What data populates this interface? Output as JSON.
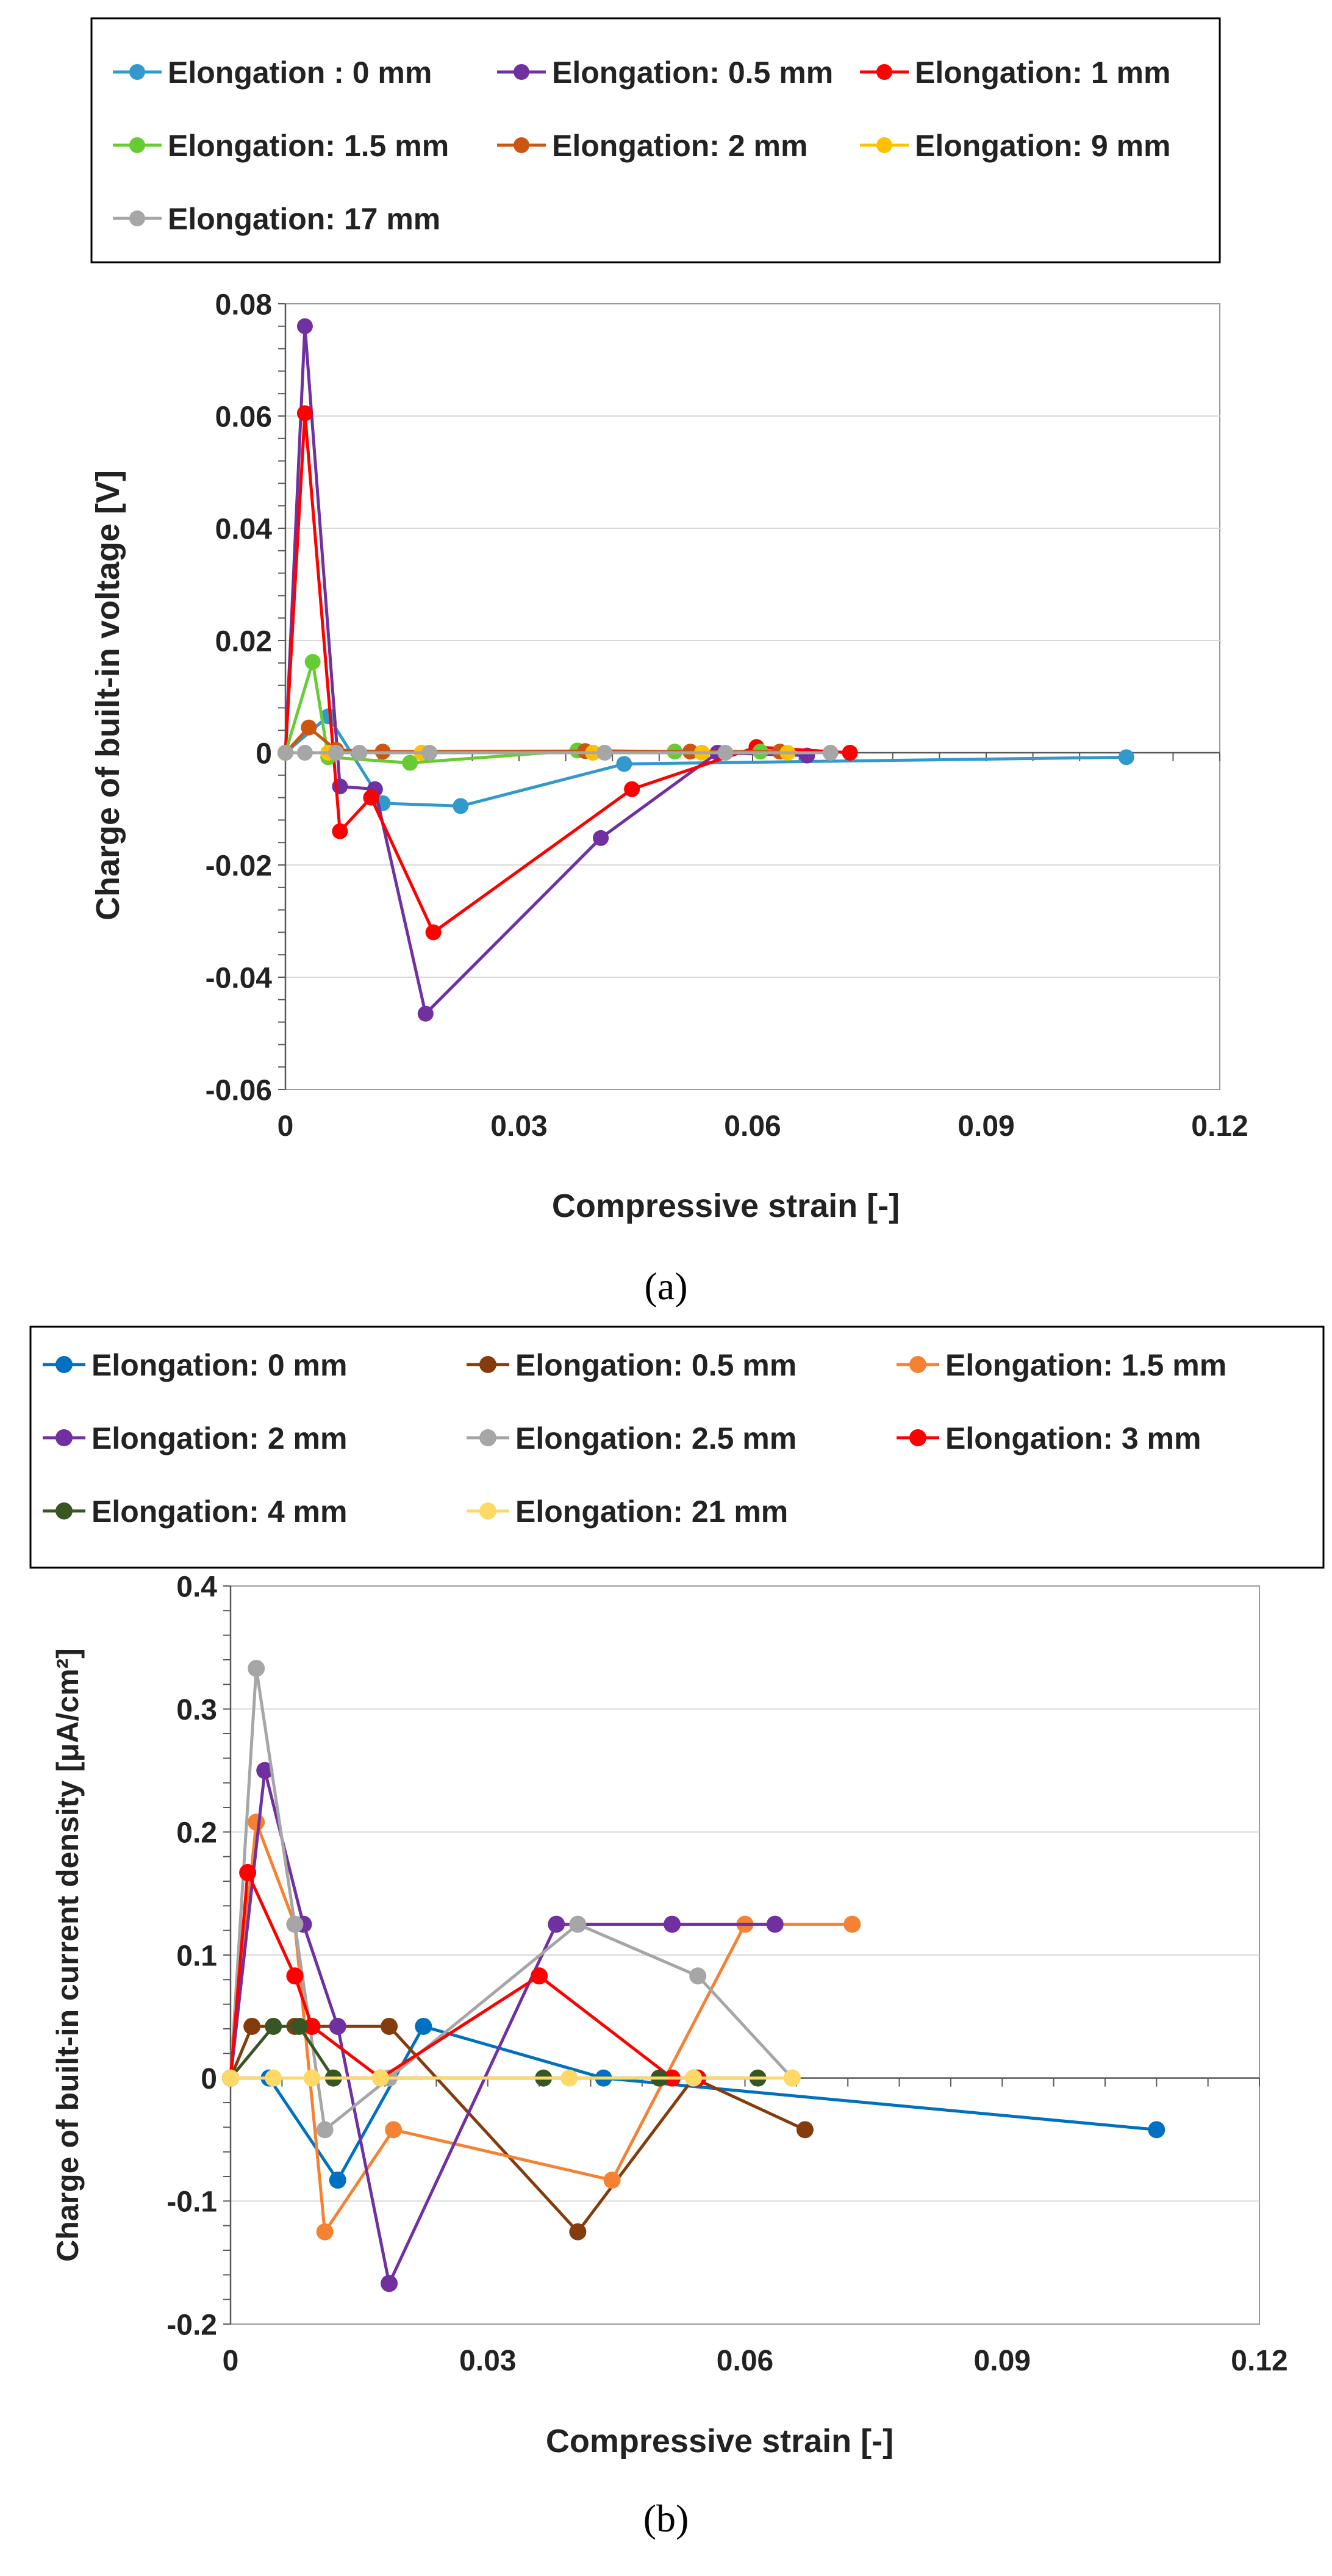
{
  "chart_data": [
    {
      "type": "line",
      "caption": "(a)",
      "xlabel": "Compressive strain   [-]",
      "ylabel": "Charge of built-in voltage   [V]",
      "xlim": [
        0,
        0.12
      ],
      "ylim": [
        -0.06,
        0.08
      ],
      "xticks": [
        0,
        0.03,
        0.06,
        0.09,
        0.12
      ],
      "xtick_labels": [
        "0",
        "0.03",
        "0.06",
        "0.09",
        "0.12"
      ],
      "yticks": [
        -0.06,
        -0.04,
        -0.02,
        0,
        0.02,
        0.04,
        0.06,
        0.08
      ],
      "ytick_labels": [
        "-0.06",
        "-0.04",
        "-0.02",
        "0",
        "0.02",
        "0.04",
        "0.06",
        "0.08"
      ],
      "legend_columns": 3,
      "series": [
        {
          "name": "Elongation : 0 mm",
          "color": "#3399CC",
          "x": [
            0,
            0.0055,
            0.0125,
            0.0225,
            0.0435,
            0.108
          ],
          "y": [
            0,
            0.0065,
            -0.009,
            -0.0095,
            -0.002,
            -0.0008
          ]
        },
        {
          "name": "Elongation: 0.5 mm",
          "color": "#7030A0",
          "x": [
            0,
            0.0025,
            0.007,
            0.0115,
            0.018,
            0.0405,
            0.0555,
            0.067
          ],
          "y": [
            0,
            0.076,
            -0.006,
            -0.0065,
            -0.0465,
            -0.0152,
            0,
            -0.0005
          ]
        },
        {
          "name": "Elongation: 1 mm",
          "color": "#FF0000",
          "x": [
            0,
            0.0025,
            0.007,
            0.011,
            0.019,
            0.0445,
            0.0605,
            0.0725
          ],
          "y": [
            0,
            0.0605,
            -0.014,
            -0.008,
            -0.032,
            -0.0065,
            0.001,
            0
          ]
        },
        {
          "name": "Elongation: 1.5 mm",
          "color": "#66CC33",
          "x": [
            0,
            0.0035,
            0.0055,
            0.016,
            0.0375,
            0.05,
            0.061
          ],
          "y": [
            0,
            0.0162,
            -0.0008,
            -0.0018,
            0.0004,
            0.0002,
            0.0002
          ]
        },
        {
          "name": "Elongation: 2 mm",
          "color": "#CC5511",
          "x": [
            0,
            0.003,
            0.0065,
            0.0125,
            0.0385,
            0.052,
            0.0635
          ],
          "y": [
            0,
            0.0045,
            0.0005,
            0.0002,
            0.0003,
            0.0002,
            0.0002
          ]
        },
        {
          "name": "Elongation: 9 mm",
          "color": "#FFC000",
          "x": [
            0,
            0.0055,
            0.0095,
            0.0175,
            0.0395,
            0.0535,
            0.0645
          ],
          "y": [
            0,
            0,
            0,
            0,
            0,
            0,
            0
          ]
        },
        {
          "name": "Elongation: 17 mm",
          "color": "#A6A6A6",
          "x": [
            0,
            0.0025,
            0.0065,
            0.0095,
            0.0185,
            0.041,
            0.0565,
            0.07
          ],
          "y": [
            0,
            0,
            0,
            0,
            0,
            0,
            0,
            0
          ]
        }
      ]
    },
    {
      "type": "line",
      "caption": "(b)",
      "xlabel": "Compressive strain   [-]",
      "ylabel": "Charge of built-in current density   [μA/cm²]",
      "xlim": [
        0,
        0.12
      ],
      "ylim": [
        -0.2,
        0.4
      ],
      "xticks": [
        0,
        0.03,
        0.06,
        0.09,
        0.12
      ],
      "xtick_labels": [
        "0",
        "0.03",
        "0.06",
        "0.09",
        "0.12"
      ],
      "yticks": [
        -0.2,
        -0.1,
        0,
        0.1,
        0.2,
        0.3,
        0.4
      ],
      "ytick_labels": [
        "-0.2",
        "-0.1",
        "0",
        "0.1",
        "0.2",
        "0.3",
        "0.4"
      ],
      "legend_columns": 3,
      "series": [
        {
          "name": "Elongation: 0 mm",
          "color": "#0070C0",
          "x": [
            0,
            0.0045,
            0.0125,
            0.0225,
            0.0435,
            0.108
          ],
          "y": [
            0,
            0,
            -0.083,
            0.042,
            0,
            -0.042
          ]
        },
        {
          "name": "Elongation: 0.5 mm",
          "color": "#843C0C",
          "x": [
            0,
            0.0025,
            0.0075,
            0.0185,
            0.0405,
            0.054,
            0.067
          ],
          "y": [
            0,
            0.042,
            0.042,
            0.042,
            -0.125,
            0,
            -0.042
          ]
        },
        {
          "name": "Elongation: 1.5 mm",
          "color": "#F58233",
          "x": [
            0,
            0.003,
            0.0075,
            0.011,
            0.019,
            0.0445,
            0.06,
            0.0725
          ],
          "y": [
            0,
            0.208,
            0.125,
            -0.125,
            -0.042,
            -0.083,
            0.125,
            0.125
          ]
        },
        {
          "name": "Elongation: 2 mm",
          "color": "#7030A0",
          "x": [
            0,
            0.004,
            0.0085,
            0.0125,
            0.0185,
            0.038,
            0.0515,
            0.0635
          ],
          "y": [
            0,
            0.25,
            0.125,
            0.042,
            -0.167,
            0.125,
            0.125,
            0.125
          ]
        },
        {
          "name": "Elongation: 2.5 mm",
          "color": "#A6A6A6",
          "x": [
            0,
            0.003,
            0.0075,
            0.011,
            0.0185,
            0.0405,
            0.0545,
            0.0655
          ],
          "y": [
            0,
            0.333,
            0.125,
            -0.042,
            0,
            0.125,
            0.083,
            0
          ]
        },
        {
          "name": "Elongation: 3 mm",
          "color": "#FF0000",
          "x": [
            0,
            0.002,
            0.0075,
            0.0095,
            0.0175,
            0.036,
            0.0515,
            0.0545
          ],
          "y": [
            0,
            0.167,
            0.083,
            0.042,
            0,
            0.083,
            0,
            0
          ]
        },
        {
          "name": "Elongation: 4 mm",
          "color": "#375623",
          "x": [
            0,
            0.005,
            0.008,
            0.012,
            0.0365,
            0.05,
            0.0615
          ],
          "y": [
            0,
            0.042,
            0.042,
            0,
            0,
            0,
            0
          ]
        },
        {
          "name": "Elongation: 21 mm",
          "color": "#FFD966",
          "x": [
            0,
            0.005,
            0.0095,
            0.0175,
            0.0395,
            0.054,
            0.0655
          ],
          "y": [
            0,
            0,
            0,
            0,
            0,
            0,
            0
          ]
        }
      ]
    }
  ]
}
